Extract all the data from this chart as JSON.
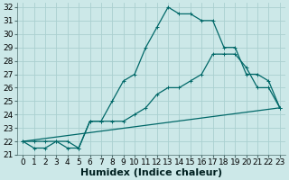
{
  "xlabel": "Humidex (Indice chaleur)",
  "bg_color": "#cce8e8",
  "grid_color": "#aad0d0",
  "line_color": "#006868",
  "xlim": [
    -0.5,
    23.5
  ],
  "ylim": [
    21,
    32.3
  ],
  "yticks": [
    21,
    22,
    23,
    24,
    25,
    26,
    27,
    28,
    29,
    30,
    31,
    32
  ],
  "xticks": [
    0,
    1,
    2,
    3,
    4,
    5,
    6,
    7,
    8,
    9,
    10,
    11,
    12,
    13,
    14,
    15,
    16,
    17,
    18,
    19,
    20,
    21,
    22,
    23
  ],
  "line1_x": [
    0,
    1,
    2,
    3,
    4,
    5,
    6,
    7,
    8,
    9,
    10,
    11,
    12,
    13,
    14,
    15,
    16,
    17,
    18,
    19,
    20,
    21,
    22,
    23
  ],
  "line1_y": [
    22,
    21.5,
    21.5,
    22,
    21.5,
    21.5,
    23.5,
    23.5,
    25,
    26.5,
    27,
    29,
    30.5,
    32,
    31.5,
    31.5,
    31,
    31,
    29,
    29,
    27,
    27,
    26.5,
    24.5
  ],
  "line2_x": [
    0,
    1,
    2,
    3,
    4,
    5,
    6,
    7,
    8,
    9,
    10,
    11,
    12,
    13,
    14,
    15,
    16,
    17,
    18,
    19,
    20,
    21,
    22,
    23
  ],
  "line2_y": [
    22,
    22,
    22,
    22,
    22,
    21.5,
    23.5,
    23.5,
    23.5,
    23.5,
    24,
    24.5,
    25.5,
    26,
    26,
    26.5,
    27,
    28.5,
    28.5,
    28.5,
    27.5,
    26,
    26,
    24.5
  ],
  "line3_x": [
    0,
    23
  ],
  "line3_y": [
    22,
    24.5
  ],
  "xlabel_fontsize": 8,
  "tick_fontsize": 6.5
}
